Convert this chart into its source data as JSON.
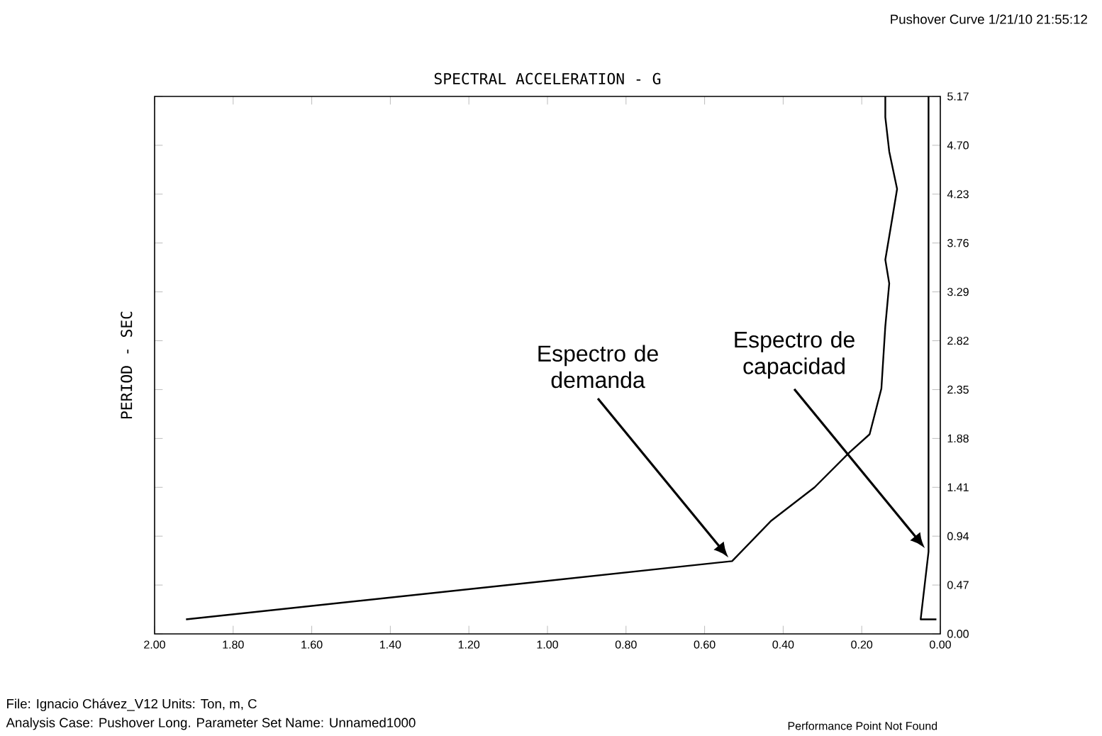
{
  "chart_data": {
    "type": "line",
    "title": "Pushover Curve 1/21/10 21:55:12",
    "xlabel": "SPECTRAL ACCELERATION - G",
    "ylabel": "PERIOD - SEC",
    "xlim": [
      2.0,
      0.0
    ],
    "xticks": [
      {
        "value": 2.0,
        "label": "2.00"
      },
      {
        "value": 1.8,
        "label": "1.80"
      },
      {
        "value": 1.6,
        "label": "1.60"
      },
      {
        "value": 1.4,
        "label": "1.40"
      },
      {
        "value": 1.2,
        "label": "1.20"
      },
      {
        "value": 1.0,
        "label": "1.00"
      },
      {
        "value": 0.8,
        "label": "0.80"
      },
      {
        "value": 0.6,
        "label": "0.60"
      },
      {
        "value": 0.4,
        "label": "0.40"
      },
      {
        "value": 0.2,
        "label": "0.20"
      },
      {
        "value": 0.0,
        "label": "0.00"
      }
    ],
    "ylim": [
      0.0,
      5.17
    ],
    "yticks": [
      {
        "value": 0.0,
        "label": "0.00"
      },
      0.47,
      0.94,
      1.41,
      1.88,
      2.35,
      2.82,
      3.29,
      3.76,
      4.23,
      {
        "value": 4.7,
        "label": "4.70"
      },
      5.17
    ],
    "series": [
      {
        "color": "#000000",
        "x": [
          1.92,
          0.53,
          0.43,
          0.32,
          0.23,
          0.18,
          0.15,
          0.14,
          0.13,
          0.14,
          0.12,
          0.11,
          0.13,
          0.14,
          0.14
        ],
        "values": [
          0.14,
          0.7,
          1.09,
          1.41,
          1.75,
          1.92,
          2.36,
          2.96,
          3.37,
          3.6,
          4.05,
          4.28,
          4.64,
          4.97,
          5.17
        ]
      },
      {
        "color": "#000000",
        "x": [
          0.01,
          0.05,
          0.03,
          0.03
        ],
        "values": [
          0.14,
          0.14,
          0.79,
          5.17
        ]
      }
    ],
    "annotations": [
      "Espectro de demanda",
      "Espectro de capacidad",
      "Performance Point Not Found",
      "File: Ignacio Chávez_V12   Units: Ton, m, C",
      "Analysis Case: Pushover Long.   Parameter Set Name: Unnamed1000"
    ]
  }
}
